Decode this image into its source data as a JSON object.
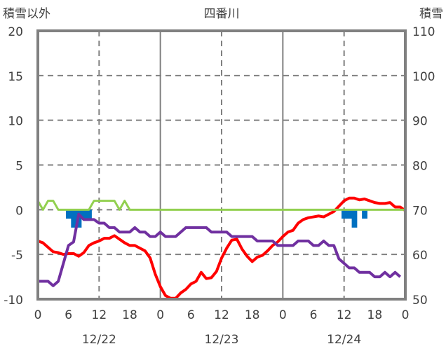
{
  "chart_data": {
    "type": "line",
    "title": "四番川",
    "ylabel_left": "積雪以外",
    "ylabel_right": "積雪",
    "ylim_left": [
      -10,
      20
    ],
    "ylim_right": [
      50,
      110
    ],
    "yticks_left": [
      "20",
      "15",
      "10",
      "5",
      "0",
      "-5",
      "-10"
    ],
    "yticks_right": [
      "110",
      "100",
      "90",
      "80",
      "70",
      "60",
      "50"
    ],
    "xlim_hours": [
      0,
      72
    ],
    "xticks": [
      "0",
      "6",
      "12",
      "18",
      "0",
      "6",
      "12",
      "18",
      "0",
      "6",
      "12",
      "18",
      "0"
    ],
    "date_labels": [
      "12/22",
      "12/23",
      "12/24"
    ],
    "grid": true,
    "colors": {
      "red": "#FF0000",
      "purple": "#7030A0",
      "green": "#92D050",
      "blue": "#0070C0",
      "grid": "#808080"
    },
    "series": [
      {
        "name": "red",
        "type": "line",
        "axis": "left",
        "values": [
          -3.5,
          -3.7,
          -4.2,
          -4.7,
          -4.8,
          -5.0,
          -4.9,
          -4.9,
          -5.2,
          -4.8,
          -4.0,
          -3.7,
          -3.5,
          -3.2,
          -3.2,
          -2.9,
          -3.3,
          -3.7,
          -4.0,
          -4.0,
          -4.3,
          -4.6,
          -5.4,
          -7.2,
          -8.6,
          -9.6,
          -9.9,
          -9.9,
          -9.3,
          -8.9,
          -8.3,
          -8.0,
          -7.0,
          -7.7,
          -7.6,
          -6.9,
          -5.4,
          -4.3,
          -3.4,
          -3.3,
          -4.4,
          -5.2,
          -5.8,
          -5.3,
          -5.1,
          -4.6,
          -4.0,
          -3.6,
          -3.0,
          -2.5,
          -2.3,
          -1.5,
          -1.1,
          -0.9,
          -0.8,
          -0.7,
          -0.8,
          -0.5,
          -0.2,
          0.4,
          1.0,
          1.3,
          1.3,
          1.1,
          1.2,
          1.0,
          0.8,
          0.7,
          0.7,
          0.8,
          0.3,
          0.3,
          -0.1
        ]
      },
      {
        "name": "purple",
        "type": "line",
        "axis": "left",
        "values": [
          -8,
          -8,
          -8,
          -8.5,
          -8,
          -6,
          -4,
          -3.6,
          -0.5,
          -1.1,
          -1.1,
          -1.1,
          -1.5,
          -1.5,
          -2,
          -2,
          -2.5,
          -2.5,
          -2.5,
          -2,
          -2.5,
          -2.5,
          -3,
          -3,
          -2.5,
          -3,
          -3,
          -3,
          -2.5,
          -2,
          -2,
          -2,
          -2,
          -2,
          -2.5,
          -2.5,
          -2.5,
          -2.5,
          -3,
          -3,
          -3,
          -3,
          -3,
          -3.5,
          -3.5,
          -3.5,
          -3.5,
          -4,
          -4,
          -4,
          -4,
          -3.5,
          -3.5,
          -3.5,
          -4,
          -4,
          -3.5,
          -4,
          -4,
          -5.5,
          -6,
          -6.5,
          -6.5,
          -7,
          -7,
          -7,
          -7.5,
          -7.5,
          -7,
          -7.5,
          -7,
          -7.5
        ]
      },
      {
        "name": "green",
        "type": "line",
        "axis": "left",
        "values": [
          1,
          0,
          1,
          1,
          0,
          0,
          0,
          0,
          0,
          0,
          0,
          1,
          1,
          1,
          1,
          1,
          0,
          1,
          0,
          0,
          0,
          0,
          0,
          0,
          0,
          0,
          0,
          0,
          0,
          0,
          0,
          0,
          0,
          0,
          0,
          0,
          0,
          0,
          0,
          0,
          0,
          0,
          0,
          0,
          0,
          0,
          0,
          0,
          0,
          0,
          0,
          0,
          0,
          0,
          0,
          0,
          0,
          0,
          0,
          0,
          0,
          0,
          0,
          0,
          0,
          0,
          0,
          0,
          0,
          0,
          0,
          0,
          0
        ]
      },
      {
        "name": "blue",
        "type": "bar",
        "axis": "left",
        "points": [
          [
            6,
            -1
          ],
          [
            7,
            -2
          ],
          [
            8,
            -2
          ],
          [
            9,
            -1
          ],
          [
            10,
            -1
          ],
          [
            60,
            -1
          ],
          [
            61,
            -1
          ],
          [
            62,
            -2
          ],
          [
            64,
            -1
          ]
        ]
      }
    ]
  }
}
